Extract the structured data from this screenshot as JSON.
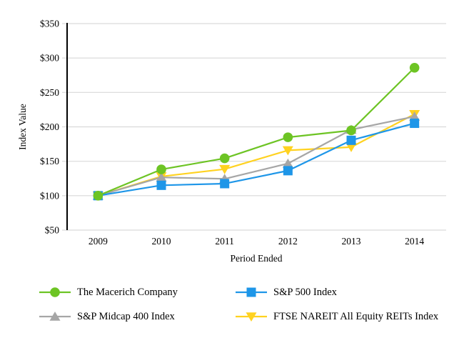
{
  "chart_data": {
    "type": "line",
    "title": "",
    "xlabel": "Period Ended",
    "ylabel": "Index Value",
    "categories": [
      "2009",
      "2010",
      "2011",
      "2012",
      "2013",
      "2014"
    ],
    "ylim": [
      50,
      350
    ],
    "ytick_step": 50,
    "ytick_labels": [
      "$50",
      "$100",
      "$150",
      "$200",
      "$250",
      "$300",
      "$350"
    ],
    "grid": true,
    "legend_position": "bottom",
    "series": [
      {
        "name": "The Macerich Company",
        "marker": "circle",
        "color": "#6DC424",
        "values": [
          100.0,
          138.13,
          154.27,
          184.83,
          194.83,
          285.88
        ]
      },
      {
        "name": "S&P 500 Index",
        "marker": "square",
        "color": "#1E96E8",
        "values": [
          100.0,
          115.06,
          117.49,
          136.3,
          180.44,
          205.14
        ]
      },
      {
        "name": "S&P Midcap 400 Index",
        "marker": "triangle-up",
        "color": "#A6A6A6",
        "values": [
          100.0,
          126.64,
          124.45,
          146.7,
          195.84,
          214.97
        ]
      },
      {
        "name": "FTSE NAREIT All Equity REITs Index",
        "marker": "triangle-down",
        "color": "#FFD220",
        "values": [
          100.0,
          127.95,
          138.55,
          165.84,
          170.58,
          218.39
        ]
      }
    ],
    "style": {
      "gridline_color": "#D9D9D9",
      "axis_color": "#000000",
      "text_color": "#000000"
    }
  }
}
